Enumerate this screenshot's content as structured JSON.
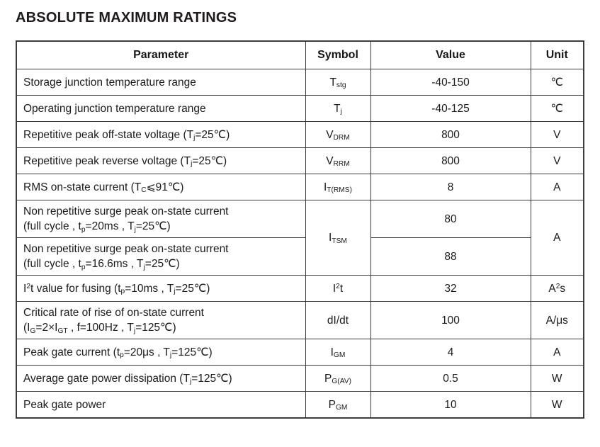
{
  "title": "ABSOLUTE MAXIMUM RATINGS",
  "colors": {
    "background": "#ffffff",
    "text": "#1b1b1b",
    "border": "#3c3c3c"
  },
  "table": {
    "headers": [
      "Parameter",
      "Symbol",
      "Value",
      "Unit"
    ],
    "rows": [
      {
        "cells": [
          {
            "text": "Storage junction temperature range",
            "align": "left"
          },
          {
            "text": "T~stg~"
          },
          {
            "text": "-40-150"
          },
          {
            "text": "℃"
          }
        ]
      },
      {
        "cells": [
          {
            "text": "Operating junction temperature range",
            "align": "left"
          },
          {
            "text": "T~j~"
          },
          {
            "text": "-40-125"
          },
          {
            "text": "℃"
          }
        ]
      },
      {
        "cells": [
          {
            "text": "Repetitive peak off-state voltage (T~j~=25℃)",
            "align": "left"
          },
          {
            "text": "V~DRM~"
          },
          {
            "text": "800"
          },
          {
            "text": "V"
          }
        ]
      },
      {
        "cells": [
          {
            "text": "Repetitive peak reverse voltage (T~j~=25℃)",
            "align": "left"
          },
          {
            "text": "V~RRM~"
          },
          {
            "text": "800"
          },
          {
            "text": "V"
          }
        ]
      },
      {
        "cells": [
          {
            "text": "RMS on-state current (T~C~⩽91℃)",
            "align": "left"
          },
          {
            "text": "I~T(RMS)~"
          },
          {
            "text": "8"
          },
          {
            "text": "A"
          }
        ]
      },
      {
        "cells": [
          {
            "text": "Non repetitive surge peak on-state current\n(full cycle , t~p~=20ms , T~j~=25℃)",
            "align": "left"
          },
          {
            "text": "I~TSM~",
            "rowspan": 2
          },
          {
            "text": "80"
          },
          {
            "text": "A",
            "rowspan": 2
          }
        ]
      },
      {
        "cells": [
          {
            "text": "Non repetitive surge peak on-state current\n(full cycle , t~p~=16.6ms , T~j~=25℃)",
            "align": "left"
          },
          {
            "text": "88"
          }
        ]
      },
      {
        "cells": [
          {
            "text": "I^2^t value for fusing (t~p~=10ms , T~j~=25℃)",
            "align": "left"
          },
          {
            "text": "I^2^t"
          },
          {
            "text": "32"
          },
          {
            "text": "A^2^s"
          }
        ]
      },
      {
        "cells": [
          {
            "text": "Critical rate of rise of on-state current\n(I~G~=2×I~GT~ , f=100Hz , T~j~=125℃)",
            "align": "left"
          },
          {
            "text": "dI/dt"
          },
          {
            "text": "100"
          },
          {
            "text": "A/μs"
          }
        ]
      },
      {
        "cells": [
          {
            "text": "Peak gate current (t~p~=20μs , T~j~=125℃)",
            "align": "left"
          },
          {
            "text": "I~GM~"
          },
          {
            "text": "4"
          },
          {
            "text": "A"
          }
        ]
      },
      {
        "cells": [
          {
            "text": "Average gate power dissipation (T~j~=125℃)",
            "align": "left"
          },
          {
            "text": "P~G(AV)~"
          },
          {
            "text": "0.5"
          },
          {
            "text": "W"
          }
        ]
      },
      {
        "cells": [
          {
            "text": "Peak gate power",
            "align": "left"
          },
          {
            "text": "P~GM~"
          },
          {
            "text": "10"
          },
          {
            "text": "W"
          }
        ]
      }
    ]
  }
}
